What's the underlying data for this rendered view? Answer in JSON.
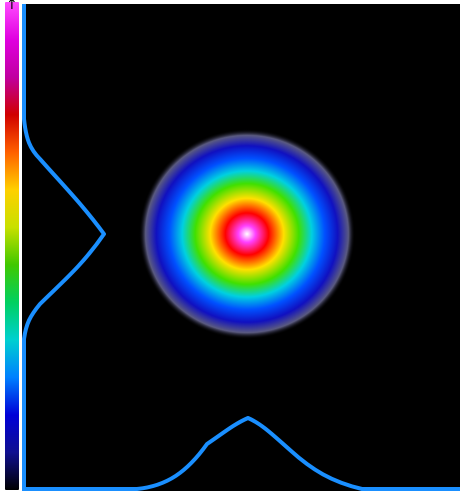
{
  "colorbar": {
    "arrow_glyph": "↑",
    "stops": [
      "#ff4cff",
      "#e000e0",
      "#c000a0",
      "#d00000",
      "#ff6000",
      "#ffd000",
      "#c8e000",
      "#40c800",
      "#00d060",
      "#00d0d0",
      "#0080ff",
      "#0000d8",
      "#101090",
      "#000000"
    ]
  },
  "beam": {
    "colors": {
      "core": "#ffffff",
      "magenta": "#ff40ff",
      "red": "#ff0000",
      "yellow": "#ffe000",
      "green": "#40e000",
      "cyan": "#00d0e0",
      "blue": "#0050ff",
      "dark_blue": "#1010c0",
      "halo": "#5a5a80"
    }
  },
  "profiles": {
    "color": "#1a8fff"
  }
}
